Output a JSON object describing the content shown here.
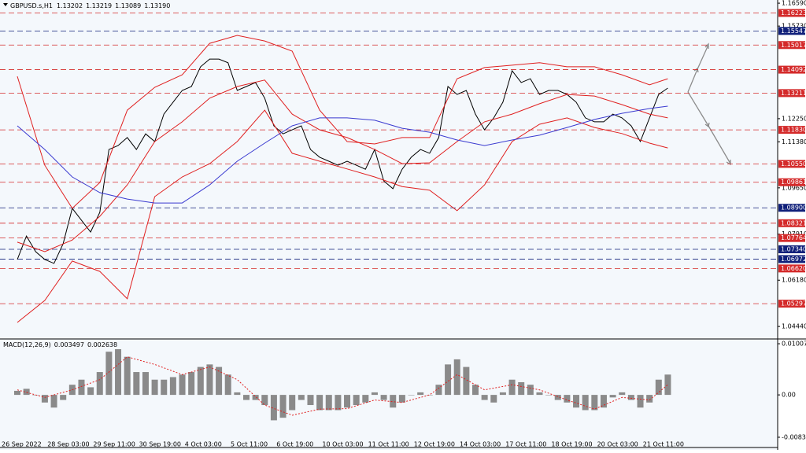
{
  "chart_data": [
    {
      "type": "line",
      "title": "GBPUSD.s,H1",
      "title_values": [
        "1.13202",
        "1.13219",
        "1.13089",
        "1.13190"
      ],
      "ylim": [
        1.04,
        1.1671
      ],
      "yticks": [
        {
          "value": 1.1659,
          "label": "1.16590"
        },
        {
          "value": 1.1573,
          "label": "1.15730"
        },
        {
          "value": 1.1225,
          "label": "1.12250"
        },
        {
          "value": 1.1138,
          "label": "1.11380"
        },
        {
          "value": 1.0965,
          "label": "1.09650"
        },
        {
          "value": 1.0791,
          "label": "1.07910"
        },
        {
          "value": 1.0618,
          "label": "1.06180"
        },
        {
          "value": 1.0444,
          "label": "1.04440"
        }
      ],
      "levels": [
        {
          "value": 1.16223,
          "label": "1.16223",
          "color": "#d42a2a"
        },
        {
          "value": 1.15547,
          "label": "1.15547",
          "color": "#10207a"
        },
        {
          "value": 1.15017,
          "label": "1.15017",
          "color": "#d42a2a"
        },
        {
          "value": 1.14092,
          "label": "1.14092",
          "color": "#d42a2a"
        },
        {
          "value": 1.13211,
          "label": "1.13211",
          "color": "#d42a2a"
        },
        {
          "value": 1.1183,
          "label": "1.11830",
          "color": "#d42a2a"
        },
        {
          "value": 1.1055,
          "label": "1.10550",
          "color": "#d42a2a"
        },
        {
          "value": 1.09861,
          "label": "1.09861",
          "color": "#d42a2a"
        },
        {
          "value": 1.089,
          "label": "1.08900",
          "color": "#10207a"
        },
        {
          "value": 1.08321,
          "label": "1.08321",
          "color": "#d42a2a"
        },
        {
          "value": 1.07764,
          "label": "1.07764",
          "color": "#d42a2a"
        },
        {
          "value": 1.0734,
          "label": "1.07340",
          "color": "#10207a"
        },
        {
          "value": 1.06972,
          "label": "1.06972",
          "color": "#10207a"
        },
        {
          "value": 1.0662,
          "label": "1.06620",
          "color": "#d42a2a"
        },
        {
          "value": 1.05297,
          "label": "1.05297",
          "color": "#d42a2a"
        }
      ],
      "series": [
        {
          "color": "#000000",
          "values": [
            1.0696,
            1.0784,
            1.0725,
            1.0696,
            1.0681,
            1.0755,
            1.0888,
            1.0843,
            1.0799,
            1.0873,
            1.1109,
            1.1124,
            1.1154,
            1.1109,
            1.1168,
            1.1139,
            1.1242,
            1.1287,
            1.1331,
            1.1346,
            1.142,
            1.1449,
            1.1449,
            1.1435,
            1.1331,
            1.1346,
            1.1361,
            1.1302,
            1.1198,
            1.1168,
            1.1183,
            1.1198,
            1.1109,
            1.108,
            1.1065,
            1.105,
            1.1065,
            1.105,
            1.1035,
            1.1109,
            1.0991,
            1.0962,
            1.1035,
            1.108,
            1.1109,
            1.1095,
            1.1154,
            1.1346,
            1.1316,
            1.1331,
            1.1242,
            1.1183,
            1.1228,
            1.1287,
            1.1405,
            1.1361,
            1.1375,
            1.1316,
            1.1331,
            1.1331,
            1.1316,
            1.1287,
            1.1228,
            1.1213,
            1.1213,
            1.1242,
            1.1228,
            1.1198,
            1.1139,
            1.1228,
            1.1316,
            1.134
          ]
        },
        {
          "color": "#e02020",
          "x": [
            0,
            3,
            6,
            9,
            12,
            15,
            18,
            21,
            24,
            27,
            30,
            33,
            36,
            39,
            42,
            45,
            48,
            51,
            54,
            57,
            60,
            63,
            66,
            69,
            71
          ],
          "values": [
            1.1384,
            1.105,
            1.0888,
            1.0985,
            1.1257,
            1.1343,
            1.139,
            1.1508,
            1.1538,
            1.1517,
            1.1479,
            1.1257,
            1.1139,
            1.113,
            1.1154,
            1.1154,
            1.1375,
            1.1417,
            1.1426,
            1.1435,
            1.142,
            1.142,
            1.139,
            1.1352,
            1.1375
          ]
        },
        {
          "color": "#e02020",
          "x": [
            0,
            3,
            6,
            9,
            12,
            15,
            18,
            21,
            24,
            27,
            30,
            33,
            36,
            39,
            42,
            45,
            48,
            51,
            54,
            57,
            60,
            63,
            66,
            69,
            71
          ],
          "values": [
            1.0761,
            1.0725,
            1.0769,
            1.0858,
            1.0976,
            1.1139,
            1.1213,
            1.1302,
            1.1346,
            1.137,
            1.1242,
            1.1183,
            1.1154,
            1.1109,
            1.1056,
            1.1059,
            1.1139,
            1.1213,
            1.1242,
            1.1281,
            1.1316,
            1.131,
            1.1278,
            1.1242,
            1.1228
          ]
        },
        {
          "color": "#e02020",
          "x": [
            0,
            3,
            6,
            9,
            12,
            15,
            18,
            21,
            24,
            27,
            30,
            33,
            36,
            39,
            42,
            45,
            48,
            51,
            54,
            57,
            60,
            63,
            66,
            69,
            71
          ],
          "values": [
            1.0459,
            1.0542,
            1.069,
            1.0651,
            1.0548,
            1.0932,
            1.1006,
            1.1056,
            1.1139,
            1.1257,
            1.1095,
            1.1065,
            1.1036,
            1.1006,
            1.097,
            1.0956,
            1.0879,
            1.0976,
            1.1139,
            1.1204,
            1.1228,
            1.1192,
            1.1169,
            1.1133,
            1.1115
          ]
        },
        {
          "color": "#3a3ad0",
          "x": [
            0,
            3,
            6,
            9,
            12,
            15,
            18,
            21,
            24,
            27,
            30,
            33,
            36,
            39,
            42,
            45,
            48,
            51,
            54,
            57,
            60,
            63,
            66,
            69,
            71
          ],
          "values": [
            1.1198,
            1.1109,
            1.1006,
            1.0947,
            1.0923,
            1.0908,
            1.0908,
            1.0976,
            1.1065,
            1.1133,
            1.1198,
            1.1228,
            1.1228,
            1.1219,
            1.1189,
            1.1174,
            1.1145,
            1.1124,
            1.1145,
            1.1163,
            1.1192,
            1.1222,
            1.1245,
            1.1263,
            1.1272
          ]
        }
      ]
    },
    {
      "type": "bar",
      "title": "MACD(12,26,9)",
      "title_values": [
        "0.003497",
        "0.002638"
      ],
      "ylim": [
        -0.0102,
        0.0107
      ],
      "yticks": [
        {
          "value": 0.01007,
          "label": "0.010070"
        },
        {
          "value": 0,
          "label": "0.00"
        },
        {
          "value": -0.008337,
          "label": "-0.008337"
        }
      ],
      "categories": [
        "26 Sep 2022",
        null,
        null,
        null,
        null,
        "28 Sep 03:00",
        null,
        null,
        null,
        null,
        "29 Sep 11:00",
        null,
        null,
        null,
        null,
        "30 Sep 19:00",
        null,
        null,
        null,
        null,
        "4 Oct 03:00",
        null,
        null,
        null,
        null,
        "5 Oct 11:00",
        null,
        null,
        null,
        null,
        "6 Oct 19:00",
        null,
        null,
        null,
        null,
        "10 Oct 03:00",
        null,
        null,
        null,
        null,
        "11 Oct 11:00",
        null,
        null,
        null,
        null,
        "12 Oct 19:00",
        null,
        null,
        null,
        null,
        "14 Oct 03:00",
        null,
        null,
        null,
        null,
        "17 Oct 11:00",
        null,
        null,
        null,
        null,
        "18 Oct 19:00",
        null,
        null,
        null,
        null,
        "20 Oct 03:00",
        null,
        null,
        null,
        null,
        "21 Oct 11:00",
        null
      ],
      "color": "#8a8a8a",
      "values": [
        0.0008,
        0.0012,
        0.0,
        -0.0015,
        -0.0025,
        -0.001,
        0.002,
        0.003,
        0.0015,
        0.0045,
        0.0085,
        0.009,
        0.0075,
        0.0045,
        0.0045,
        0.003,
        0.003,
        0.0035,
        0.004,
        0.0045,
        0.0055,
        0.006,
        0.0055,
        0.004,
        0.0005,
        -0.001,
        -0.001,
        -0.002,
        -0.005,
        -0.0045,
        -0.003,
        -0.001,
        -0.002,
        -0.003,
        -0.003,
        -0.003,
        -0.0025,
        -0.002,
        -0.0015,
        0.0005,
        -0.001,
        -0.0025,
        -0.0015,
        0.0,
        0.0005,
        0.0,
        0.002,
        0.006,
        0.007,
        0.0055,
        0.002,
        -0.001,
        -0.0015,
        0.0005,
        0.003,
        0.0025,
        0.002,
        0.0005,
        0.0,
        -0.001,
        -0.0015,
        -0.0025,
        -0.003,
        -0.003,
        -0.0025,
        -0.0005,
        0.0005,
        -0.001,
        -0.0025,
        -0.0015,
        0.003,
        0.004
      ],
      "signal": {
        "color": "#e02020",
        "x": [
          0,
          3,
          6,
          9,
          12,
          15,
          18,
          21,
          24,
          27,
          30,
          33,
          36,
          39,
          42,
          45,
          48,
          51,
          54,
          57,
          60,
          63,
          66,
          69,
          71
        ],
        "values": [
          0.001,
          -0.0005,
          0.001,
          0.003,
          0.0075,
          0.006,
          0.004,
          0.0055,
          0.003,
          -0.002,
          -0.004,
          -0.0028,
          -0.0027,
          -0.001,
          -0.0015,
          0.0,
          0.004,
          0.001,
          0.002,
          0.001,
          -0.001,
          -0.0028,
          -0.0005,
          -0.001,
          0.002
        ]
      }
    }
  ]
}
